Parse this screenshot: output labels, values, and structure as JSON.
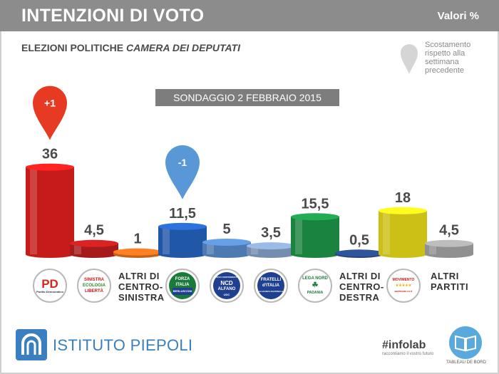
{
  "header": {
    "title": "INTENZIONI DI VOTO",
    "unit": "Valori %"
  },
  "subtitle": {
    "part1": "ELEZIONI POLITICHE",
    "part2": "CAMERA DEI DEPUTATI"
  },
  "legend_note": "Scostamento rispetto alla settimana precedente",
  "poll_label": "SONDAGGIO 2 FEBBRAIO 2015",
  "chart_data": {
    "type": "bar",
    "title": "INTENZIONI DI VOTO",
    "ylabel": "Valori %",
    "categories": [
      "PD",
      "Sinistra Ecologia Libertà",
      "ALTRI DI CENTRO-SINISTRA",
      "Forza Italia",
      "NCD Alfano",
      "Fratelli d'Italia",
      "Lega Nord",
      "ALTRI DI CENTRO-DESTRA",
      "MoVimento 5 Stelle",
      "ALTRI PARTITI"
    ],
    "values": [
      36,
      4.5,
      1,
      11.5,
      5,
      3.5,
      15.5,
      0.5,
      18,
      4.5
    ],
    "value_labels": [
      "36",
      "4,5",
      "1",
      "11,5",
      "5",
      "3,5",
      "15,5",
      "0,5",
      "18",
      "4,5"
    ],
    "changes": [
      {
        "category": "PD",
        "label": "+1",
        "color": "#e63b22"
      },
      {
        "category": "Forza Italia",
        "label": "-1",
        "color": "#5a97d6"
      }
    ],
    "colors": [
      "#e8201e",
      "#c41f20",
      "#e8731f",
      "#2766c4",
      "#5b8fd0",
      "#8aa7cf",
      "#1e9a4a",
      "#2a4d8c",
      "#f0e21a",
      "#a9a9a9"
    ],
    "grid": false
  },
  "other_labels": {
    "centro_sinistra": [
      "ALTRI DI",
      "CENTRO-",
      "SINISTRA"
    ],
    "centro_destra": [
      "ALTRI DI",
      "CENTRO-",
      "DESTRA"
    ],
    "altri_partiti": [
      "ALTRI",
      "PARTITI"
    ]
  },
  "logos": {
    "pd": {
      "big": "PD",
      "small": "Partito Democratico",
      "color": "#d7261e"
    },
    "sel": {
      "line1": "SINISTRA",
      "line2": "ECOLOGIA",
      "line3": "LIBERTÀ",
      "color": "#c8161d"
    },
    "fi": {
      "line1": "FORZA",
      "line2": "ITALIA",
      "line3": "BERLUSCONI",
      "color": "#1a7a3a"
    },
    "ncd": {
      "line1": "NUOVO CENTRODESTRA",
      "line2": "NCD",
      "line3": "ALFANO",
      "line4": "UDC",
      "color": "#1f3f8f"
    },
    "fdi": {
      "line1": "FRATELLI",
      "line2": "d'ITALIA",
      "line3": "ALLEANZA NAZIONALE",
      "color": "#1f3f8f"
    },
    "lega": {
      "line1": "LEGA NORD",
      "line2": "PADANIA",
      "color": "#1b7a3d"
    },
    "m5s": {
      "line1": "MOVIMENTO",
      "line2": "★★★★★",
      "line3": "BEPPEGRILLO.IT",
      "color": "#c11d1d"
    }
  },
  "footer": {
    "brand": "ISTITUTO PIEPOLI",
    "infolab": "#infolab",
    "infolab_tagline": "raccontiamo il vostro futuro",
    "tableau": "TABLEAU DE BORD"
  }
}
